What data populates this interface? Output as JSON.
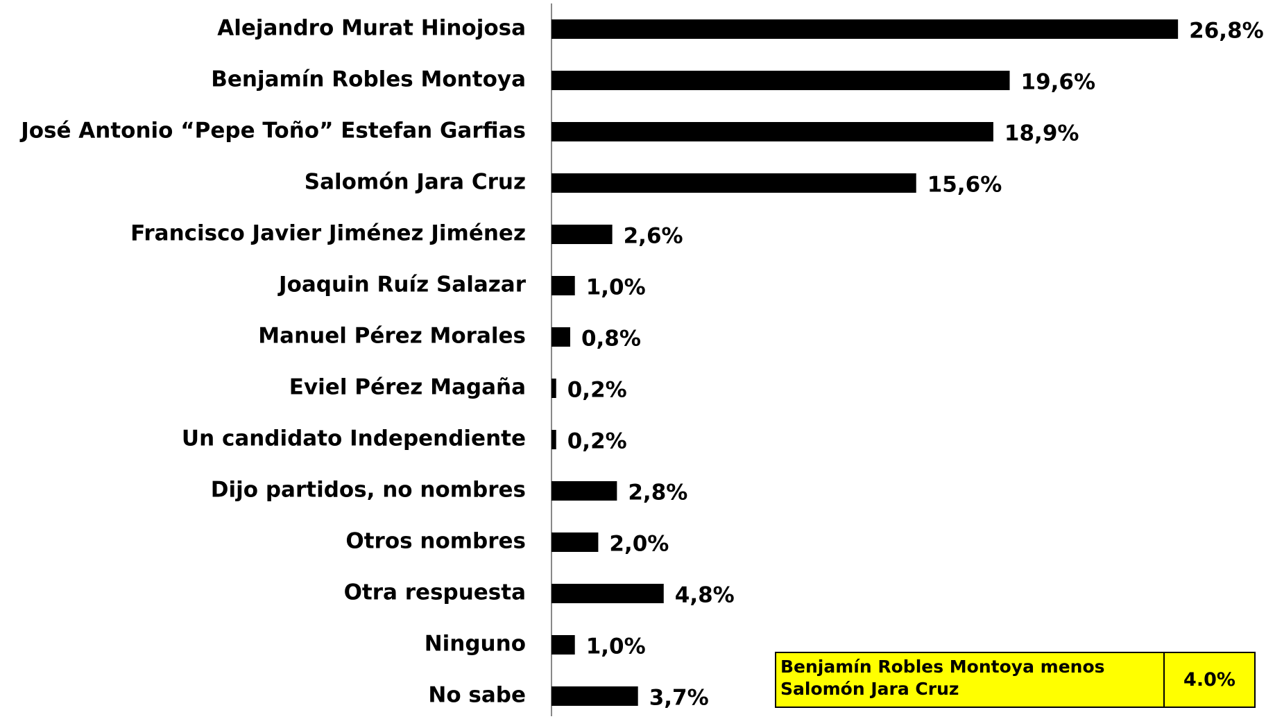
{
  "chart_data": {
    "type": "bar",
    "orientation": "horizontal",
    "categories": [
      "Alejandro Murat Hinojosa",
      "Benjamín Robles Montoya",
      "José Antonio “Pepe Toño” Estefan Garfias",
      "Salomón Jara Cruz",
      "Francisco Javier Jiménez Jiménez",
      "Joaquin Ruíz Salazar",
      "Manuel Pérez Morales",
      "Eviel Pérez Magaña",
      "Un candidato Independiente",
      "Dijo partidos, no nombres",
      "Otros nombres",
      "Otra respuesta",
      "Ninguno",
      "No sabe"
    ],
    "values": [
      26.8,
      19.6,
      18.9,
      15.6,
      2.6,
      1.0,
      0.8,
      0.2,
      0.2,
      2.8,
      2.0,
      4.8,
      1.0,
      3.7
    ],
    "value_labels": [
      "26,8%",
      "19,6%",
      "18,9%",
      "15,6%",
      "2,6%",
      "1,0%",
      "0,8%",
      "0,2%",
      "0,2%",
      "2,8%",
      "2,0%",
      "4,8%",
      "1,0%",
      "3,7%"
    ],
    "color": "#000000",
    "xlim": [
      0,
      30
    ],
    "annotation": {
      "label": "Benjamín Robles Montoya  menos Salomón Jara Cruz",
      "value": "4.0%"
    }
  }
}
